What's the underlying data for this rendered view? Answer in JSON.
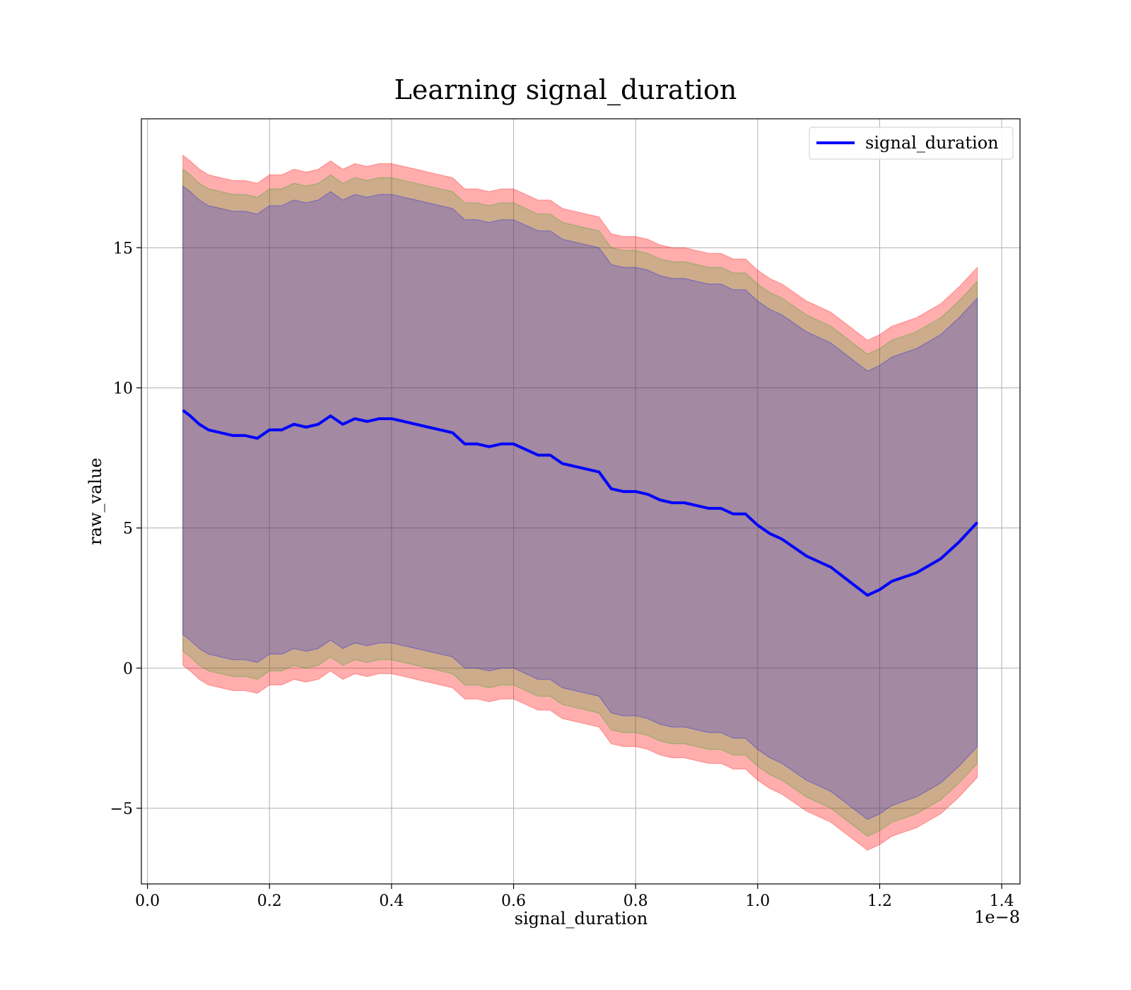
{
  "chart_data": {
    "type": "area",
    "title": "Learning signal_duration",
    "xlabel": "signal_duration",
    "ylabel": "raw_value",
    "x_offset_label": "1e−8",
    "xlim": [
      -0.01,
      1.43
    ],
    "ylim": [
      -7.7,
      19.6
    ],
    "x_ticks": [
      {
        "value": 0.0,
        "label": "0.0"
      },
      {
        "value": 0.2,
        "label": "0.2"
      },
      {
        "value": 0.4,
        "label": "0.4"
      },
      {
        "value": 0.6,
        "label": "0.6"
      },
      {
        "value": 0.8,
        "label": "0.8"
      },
      {
        "value": 1.0,
        "label": "1.0"
      },
      {
        "value": 1.2,
        "label": "1.2"
      },
      {
        "value": 1.4,
        "label": "1.4"
      }
    ],
    "y_ticks": [
      {
        "value": -5,
        "label": "−5"
      },
      {
        "value": 0,
        "label": "0"
      },
      {
        "value": 5,
        "label": "5"
      },
      {
        "value": 10,
        "label": "10"
      },
      {
        "value": 15,
        "label": "15"
      }
    ],
    "grid": true,
    "legend_position": "top-right",
    "series": [
      {
        "name": "signal_duration",
        "color": "#0000ff",
        "x": [
          0.058,
          0.07,
          0.085,
          0.1,
          0.12,
          0.14,
          0.16,
          0.18,
          0.2,
          0.22,
          0.24,
          0.26,
          0.28,
          0.3,
          0.32,
          0.34,
          0.36,
          0.38,
          0.4,
          0.42,
          0.44,
          0.46,
          0.48,
          0.5,
          0.52,
          0.54,
          0.56,
          0.58,
          0.6,
          0.62,
          0.64,
          0.66,
          0.68,
          0.7,
          0.72,
          0.74,
          0.76,
          0.78,
          0.8,
          0.82,
          0.84,
          0.86,
          0.88,
          0.9,
          0.92,
          0.94,
          0.96,
          0.98,
          1.0,
          1.02,
          1.04,
          1.06,
          1.08,
          1.1,
          1.12,
          1.15,
          1.18,
          1.2,
          1.22,
          1.26,
          1.3,
          1.33,
          1.36
        ],
        "values": [
          9.2,
          9.0,
          8.7,
          8.5,
          8.4,
          8.3,
          8.3,
          8.2,
          8.5,
          8.5,
          8.7,
          8.6,
          8.7,
          9.0,
          8.7,
          8.9,
          8.8,
          8.9,
          8.9,
          8.8,
          8.7,
          8.6,
          8.5,
          8.4,
          8.0,
          8.0,
          7.9,
          8.0,
          8.0,
          7.8,
          7.6,
          7.6,
          7.3,
          7.2,
          7.1,
          7.0,
          6.4,
          6.3,
          6.3,
          6.2,
          6.0,
          5.9,
          5.9,
          5.8,
          5.7,
          5.7,
          5.5,
          5.5,
          5.1,
          4.8,
          4.6,
          4.3,
          4.0,
          3.8,
          3.6,
          3.1,
          2.6,
          2.8,
          3.1,
          3.4,
          3.9,
          4.5,
          5.2
        ]
      }
    ],
    "bands": [
      {
        "color": "#ff0000",
        "opacity": 0.32,
        "half_width": 9.1
      },
      {
        "color": "#00aa00",
        "opacity": 0.2,
        "half_width": 8.6
      },
      {
        "color": "#0000ff",
        "opacity": 0.2,
        "half_width": 8.0
      }
    ]
  }
}
